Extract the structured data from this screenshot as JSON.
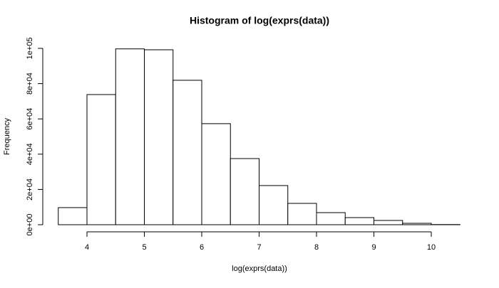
{
  "chart_data": {
    "type": "histogram",
    "title": "Histogram of log(exprs(data))",
    "x_label": "log(exprs(data))",
    "y_label": "Frequency",
    "bins": [
      3.5,
      4,
      4.5,
      5,
      5.5,
      6,
      6.5,
      7,
      7.5,
      8,
      8.5,
      9,
      9.5,
      10,
      10.5
    ],
    "values": [
      9700,
      73800,
      99700,
      99200,
      81900,
      57300,
      37500,
      22200,
      12100,
      6850,
      4030,
      2420,
      800,
      100
    ],
    "color": "#ffffff",
    "edgecolor": "#000000",
    "xlim": [
      3.5,
      10.5
    ],
    "ylim": [
      0,
      100000
    ],
    "xticks": [
      4,
      5,
      6,
      7,
      8,
      9,
      10
    ],
    "yticks": [
      {
        "value": 0,
        "label": "0e+00"
      },
      {
        "value": 20000,
        "label": "2e+04"
      },
      {
        "value": 40000,
        "label": "4e+04"
      },
      {
        "value": 60000,
        "label": "6e+04"
      },
      {
        "value": 80000,
        "label": "8e+04"
      },
      {
        "value": 100000,
        "label": "1e+05"
      }
    ],
    "grid": false
  }
}
